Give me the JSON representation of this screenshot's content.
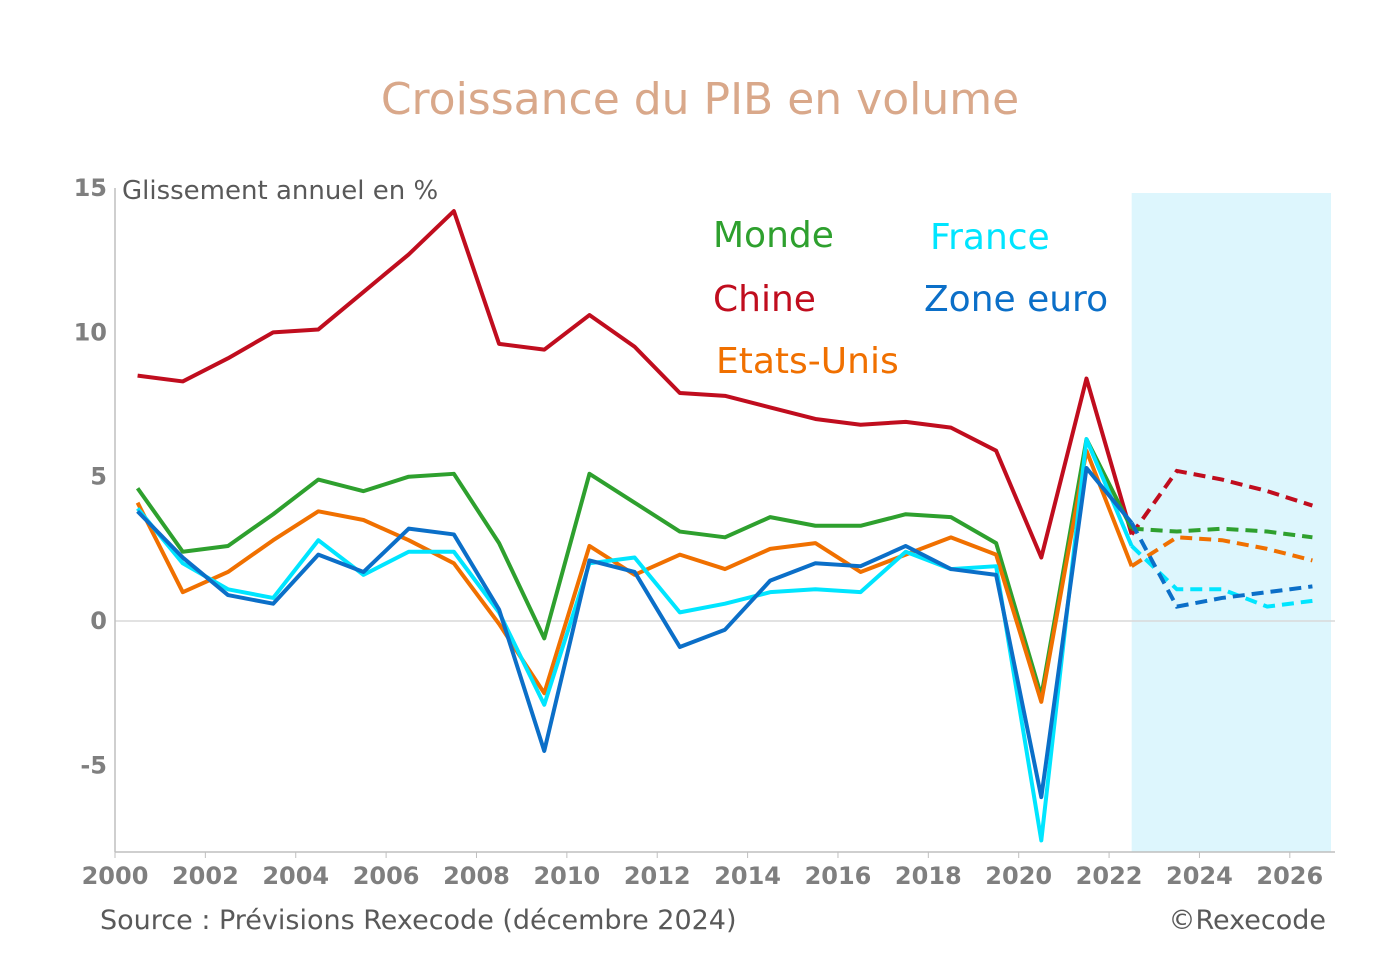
{
  "title": "Croissance du PIB en volume",
  "unit_label": "Glissement annuel en %",
  "source": "Source : Prévisions Rexecode (décembre 2024)",
  "copyright": "©Rexecode",
  "chart_data": {
    "type": "line",
    "title": "Croissance du PIB en volume",
    "ylabel": "Glissement annuel en %",
    "xlim": [
      2000,
      2027
    ],
    "ylim": [
      -8,
      15
    ],
    "x_ticks": [
      "2000",
      "2002",
      "2004",
      "2006",
      "2008",
      "2010",
      "2012",
      "2014",
      "2016",
      "2018",
      "2020",
      "2022",
      "2024",
      "2026"
    ],
    "y_ticks": [
      "15",
      "10",
      "5",
      "0",
      "-5"
    ],
    "forecast_shaded_from": 2022.5,
    "forecast_dashed_from": 2022,
    "grid": false,
    "legend_placement": "top-center",
    "x": [
      2000,
      2001,
      2002,
      2003,
      2004,
      2005,
      2006,
      2007,
      2008,
      2009,
      2010,
      2011,
      2012,
      2013,
      2014,
      2015,
      2016,
      2017,
      2018,
      2019,
      2020,
      2021,
      2022,
      2023,
      2024,
      2025,
      2026
    ],
    "series": [
      {
        "name": "Chine",
        "color": "#C00D1E",
        "values": [
          8.5,
          8.3,
          9.1,
          10.0,
          10.1,
          11.4,
          12.7,
          14.2,
          9.6,
          9.4,
          10.6,
          9.5,
          7.9,
          7.8,
          7.4,
          7.0,
          6.8,
          6.9,
          6.7,
          5.9,
          2.2,
          8.4,
          3.0,
          5.2,
          4.9,
          4.5,
          4.0
        ]
      },
      {
        "name": "Monde",
        "color": "#2EA02E",
        "values": [
          4.6,
          2.4,
          2.6,
          3.7,
          4.9,
          4.5,
          5.0,
          5.1,
          2.7,
          -0.6,
          5.1,
          4.1,
          3.1,
          2.9,
          3.6,
          3.3,
          3.3,
          3.7,
          3.6,
          2.7,
          -2.6,
          6.3,
          3.2,
          3.1,
          3.2,
          3.1,
          2.9
        ]
      },
      {
        "name": "Etats-Unis",
        "color": "#F07000",
        "values": [
          4.1,
          1.0,
          1.7,
          2.8,
          3.8,
          3.5,
          2.8,
          2.0,
          -0.1,
          -2.5,
          2.6,
          1.6,
          2.3,
          1.8,
          2.5,
          2.7,
          1.7,
          2.3,
          2.9,
          2.3,
          -2.8,
          5.9,
          1.9,
          2.9,
          2.8,
          2.5,
          2.1
        ]
      },
      {
        "name": "France",
        "color": "#00E5FF",
        "values": [
          3.9,
          2.0,
          1.1,
          0.8,
          2.8,
          1.6,
          2.4,
          2.4,
          0.3,
          -2.9,
          2.0,
          2.2,
          0.3,
          0.6,
          1.0,
          1.1,
          1.0,
          2.4,
          1.8,
          1.9,
          -7.6,
          6.3,
          2.6,
          1.1,
          1.1,
          0.5,
          0.7
        ]
      },
      {
        "name": "Zone euro",
        "color": "#0B6FC8",
        "values": [
          3.8,
          2.2,
          0.9,
          0.6,
          2.3,
          1.7,
          3.2,
          3.0,
          0.4,
          -4.5,
          2.1,
          1.7,
          -0.9,
          -0.3,
          1.4,
          2.0,
          1.9,
          2.6,
          1.8,
          1.6,
          -6.1,
          5.3,
          3.4,
          0.5,
          0.8,
          1.0,
          1.2
        ]
      }
    ]
  }
}
